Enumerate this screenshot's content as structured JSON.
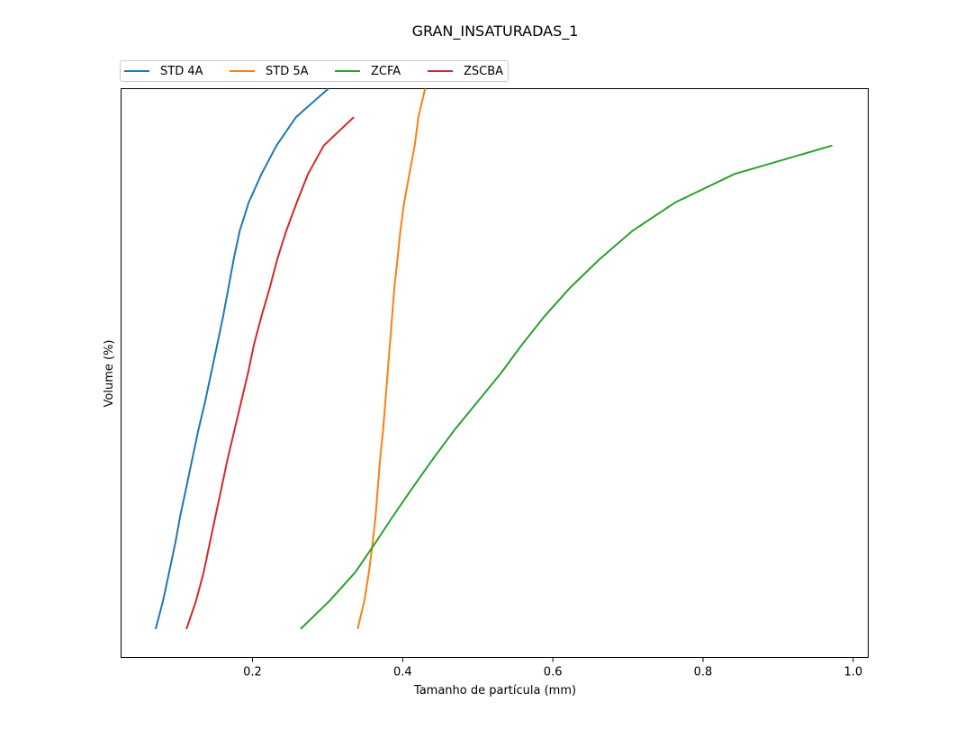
{
  "chart_data": {
    "type": "line",
    "title": "GRAN_INSATURADAS_1",
    "xlabel": "Tamanho de partícula (mm)",
    "ylabel": "Volume (%)",
    "xlim": [
      0.025,
      1.02
    ],
    "ylim": [
      -1,
      19
    ],
    "xticks": [
      "0.2",
      "0.4",
      "0.6",
      "0.8",
      "1.0"
    ],
    "grid": false,
    "legend_position": "top-left-outside",
    "series": [
      {
        "name": "STD 4A",
        "color": "#1f77b4",
        "x": [
          0.071,
          0.081,
          0.089,
          0.097,
          0.104,
          0.112,
          0.12,
          0.128,
          0.137,
          0.145,
          0.153,
          0.161,
          0.168,
          0.175,
          0.183,
          0.195,
          0.212,
          0.232,
          0.258,
          0.301
        ],
        "y": [
          0,
          1,
          2,
          3,
          4,
          5,
          6,
          7,
          8,
          9,
          10,
          11,
          12,
          13,
          14,
          15,
          16,
          17,
          18,
          19
        ]
      },
      {
        "name": "STD 5A",
        "color": "#ff7f0e",
        "x": [
          0.34,
          0.349,
          0.355,
          0.36,
          0.364,
          0.367,
          0.37,
          0.374,
          0.377,
          0.38,
          0.383,
          0.386,
          0.389,
          0.393,
          0.397,
          0.402,
          0.409,
          0.416,
          0.421,
          0.43
        ],
        "y": [
          0,
          1,
          2,
          3,
          4,
          5,
          6,
          7,
          8,
          9,
          10,
          11,
          12,
          13,
          14,
          15,
          16,
          17,
          18,
          19
        ]
      },
      {
        "name": "ZCFA",
        "color": "#2ca02c",
        "x": [
          0.264,
          0.303,
          0.337,
          0.363,
          0.388,
          0.414,
          0.441,
          0.469,
          0.5,
          0.531,
          0.559,
          0.589,
          0.623,
          0.662,
          0.706,
          0.763,
          0.842,
          0.972
        ],
        "y": [
          0,
          1,
          2,
          3,
          4,
          5,
          6,
          7,
          8,
          9,
          10,
          11,
          12,
          13,
          14,
          15,
          16,
          17
        ]
      },
      {
        "name": "ZSCBA",
        "color": "#d62728",
        "x": [
          0.112,
          0.125,
          0.135,
          0.143,
          0.151,
          0.159,
          0.167,
          0.176,
          0.185,
          0.194,
          0.202,
          0.212,
          0.223,
          0.233,
          0.245,
          0.259,
          0.274,
          0.295,
          0.335
        ],
        "y": [
          0,
          1,
          2,
          3,
          4,
          5,
          6,
          7,
          8,
          9,
          10,
          11,
          12,
          13,
          14,
          15,
          16,
          17,
          18
        ]
      }
    ]
  }
}
